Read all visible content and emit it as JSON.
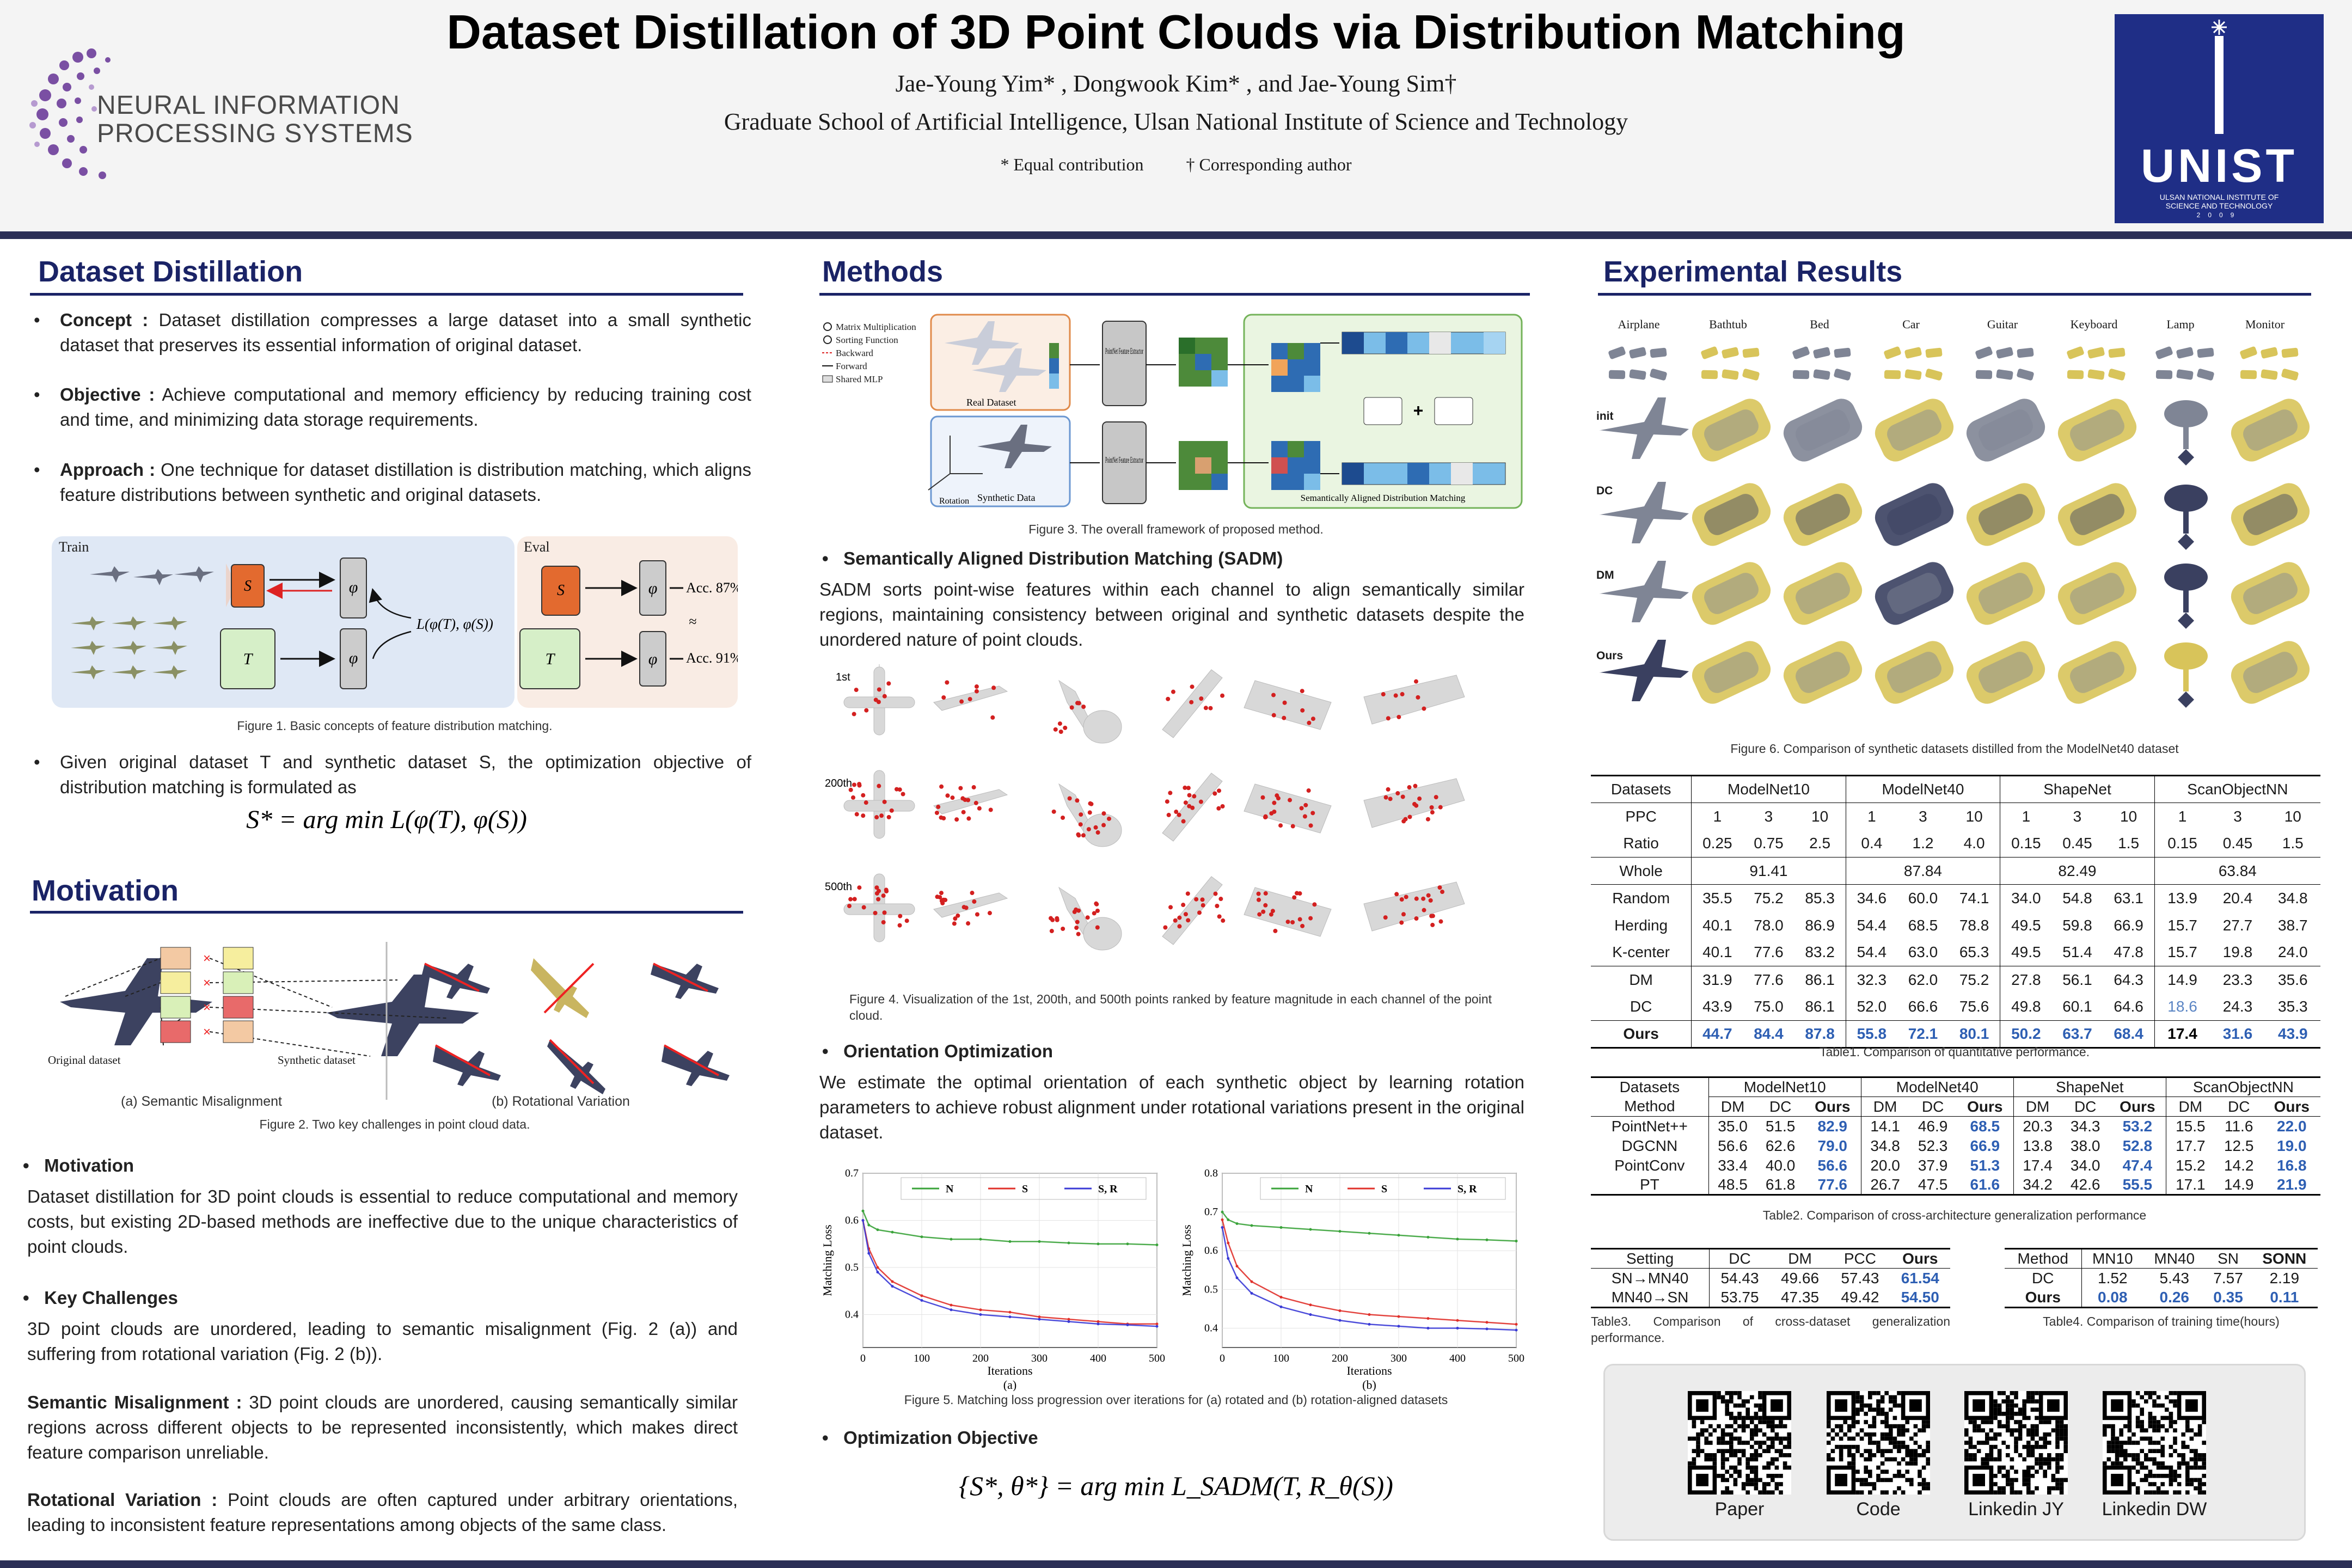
{
  "header": {
    "title": "Dataset Distillation of 3D Point Clouds via Distribution Matching",
    "authors": "Jae-Young Yim* , Dongwook Kim* , and Jae-Young Sim†",
    "affiliation": "Graduate School of Artificial Intelligence, Ulsan National Institute of Science and Technology",
    "note_equal": "* Equal contribution",
    "note_corr": "† Corresponding author",
    "neurips_line1": "NEURAL INFORMATION",
    "neurips_line2": "PROCESSING SYSTEMS",
    "unist_logo": "UNIST",
    "unist_sub1": "ULSAN NATIONAL INSTITUTE OF",
    "unist_sub2": "SCIENCE AND TECHNOLOGY",
    "unist_year": "2009"
  },
  "left": {
    "dd_title": "Dataset Distillation",
    "concept_label": "Concept :",
    "concept_text": "Dataset distillation compresses a large dataset into a small synthetic dataset that preserves its essential information of original dataset.",
    "objective_label": "Objective :",
    "objective_text": "Achieve computational and memory efficiency by reducing training cost and time, and minimizing data storage requirements.",
    "approach_label": "Approach :",
    "approach_text": "One technique for dataset distillation is distribution matching, which aligns feature distributions between synthetic and original datasets.",
    "fig1_train": "Train",
    "fig1_eval": "Eval",
    "fig1_loss": "L(φ(T), φ(S))",
    "fig1_acc1": "Acc. 87%",
    "fig1_acc2": "Acc. 91%",
    "fig1_caption": "Figure 1. Basic concepts of feature distribution matching.",
    "given_text": "Given original dataset T and synthetic dataset S, the optimization objective of distribution matching is formulated as",
    "eq1": "S* = arg min L(φ(T), φ(S))",
    "motivation_title": "Motivation",
    "fig2_orig": "Original dataset",
    "fig2_syn": "Synthetic dataset",
    "fig2_a": "(a) Semantic Misalignment",
    "fig2_b": "(b) Rotational Variation",
    "fig2_caption": "Figure 2. Two key challenges in point cloud data.",
    "mot_head": "Motivation",
    "mot_text": "Dataset distillation for 3D point clouds is essential to reduce computational and memory costs, but existing 2D-based methods are ineffective due to the unique characteristics of point clouds.",
    "kc_head": "Key Challenges",
    "kc_text": "3D point clouds are unordered, leading to semantic misalignment (Fig. 2 (a)) and suffering from rotational variation (Fig. 2 (b)).",
    "sm_label": "Semantic Misalignment :",
    "sm_text": "3D point clouds are unordered, causing semantically similar regions across different objects to be represented inconsistently, which makes direct feature comparison unreliable.",
    "rv_label": "Rotational Variation :",
    "rv_text": "Point clouds are often captured under arbitrary orientations, leading to inconsistent feature representations among objects of the same class."
  },
  "middle": {
    "methods_title": "Methods",
    "fig3_legend": [
      "Matrix Multiplication",
      "Sorting Function",
      "Backward",
      "Forward",
      "Shared MLP"
    ],
    "fig3_real": "Real Dataset",
    "fig3_syn": "Synthetic Data",
    "fig3_rot": "Rotation",
    "fig3_pn": "PointNet Feature Extractor",
    "fig3_sadm": "Semantically Aligned Distribution Matching",
    "fig3_caption": "Figure 3. The overall framework of proposed method.",
    "sadm_head": "Semantically Aligned Distribution Matching (SADM)",
    "sadm_text": "SADM sorts point-wise features within each channel to align semantically similar regions, maintaining consistency between original and synthetic datasets despite the unordered nature of point clouds.",
    "fig4_rows": [
      "1st",
      "200th",
      "500th"
    ],
    "fig4_caption": "Figure 4. Visualization of the 1st, 200th, and 500th points ranked by feature magnitude in each channel of the point cloud.",
    "oo_head": "Orientation Optimization",
    "oo_text": "We estimate the optimal orientation of each synthetic object by learning rotation parameters to achieve robust alignment under rotational variations present in the original dataset.",
    "fig5_caption": "Figure 5. Matching loss progression over iterations for (a) rotated and (b) rotation-aligned datasets",
    "obj_head": "Optimization Objective",
    "eq2": "{S*, θ*} = arg min L_SADM(T, R_θ(S))"
  },
  "chart_data": [
    {
      "type": "line",
      "title": "",
      "xlabel": "Iterations",
      "ylabel": "Matching Loss",
      "panel": "(a)",
      "xlim": [
        0,
        500
      ],
      "ylim": [
        0.33,
        0.7
      ],
      "x": [
        0,
        10,
        25,
        50,
        100,
        150,
        200,
        250,
        300,
        350,
        400,
        450,
        500
      ],
      "series": [
        {
          "name": "N",
          "color": "#3aa33a",
          "values": [
            0.62,
            0.59,
            0.58,
            0.575,
            0.565,
            0.56,
            0.56,
            0.555,
            0.555,
            0.552,
            0.55,
            0.55,
            0.548
          ]
        },
        {
          "name": "S",
          "color": "#e0302a",
          "values": [
            0.6,
            0.54,
            0.5,
            0.47,
            0.44,
            0.42,
            0.41,
            0.405,
            0.395,
            0.39,
            0.385,
            0.38,
            0.38
          ]
        },
        {
          "name": "S, R",
          "color": "#3a3ad6",
          "values": [
            0.6,
            0.53,
            0.49,
            0.46,
            0.43,
            0.41,
            0.4,
            0.395,
            0.39,
            0.385,
            0.38,
            0.378,
            0.375
          ]
        }
      ]
    },
    {
      "type": "line",
      "title": "",
      "xlabel": "Iterations",
      "ylabel": "Matching Loss",
      "panel": "(b)",
      "xlim": [
        0,
        500
      ],
      "ylim": [
        0.35,
        0.8
      ],
      "x": [
        0,
        10,
        25,
        50,
        100,
        150,
        200,
        250,
        300,
        350,
        400,
        450,
        500
      ],
      "series": [
        {
          "name": "N",
          "color": "#3aa33a",
          "values": [
            0.7,
            0.68,
            0.67,
            0.665,
            0.66,
            0.655,
            0.65,
            0.645,
            0.64,
            0.635,
            0.63,
            0.628,
            0.625
          ]
        },
        {
          "name": "S",
          "color": "#e0302a",
          "values": [
            0.68,
            0.62,
            0.56,
            0.52,
            0.48,
            0.46,
            0.445,
            0.435,
            0.43,
            0.425,
            0.42,
            0.415,
            0.41
          ]
        },
        {
          "name": "S, R",
          "color": "#3a3ad6",
          "values": [
            0.66,
            0.58,
            0.53,
            0.49,
            0.455,
            0.435,
            0.42,
            0.41,
            0.405,
            0.4,
            0.4,
            0.398,
            0.395
          ]
        }
      ]
    }
  ],
  "right": {
    "exp_title": "Experimental Results",
    "fig6_classes": [
      "Airplane",
      "Bathtub",
      "Bed",
      "Car",
      "Guitar",
      "Keyboard",
      "Lamp",
      "Monitor"
    ],
    "fig6_rows": [
      "init",
      "DC",
      "DM",
      "Ours"
    ],
    "fig6_caption": "Figure 6. Comparison of synthetic datasets distilled from the ModelNet40 dataset",
    "table1": {
      "head": [
        "Datasets",
        "ModelNet10",
        "ModelNet40",
        "ShapeNet",
        "ScanObjectNN"
      ],
      "ppc_label": "PPC",
      "ppc": [
        "1",
        "3",
        "10",
        "1",
        "3",
        "10",
        "1",
        "3",
        "10",
        "1",
        "3",
        "10"
      ],
      "ratio_label": "Ratio",
      "ratio": [
        "0.25",
        "0.75",
        "2.5",
        "0.4",
        "1.2",
        "4.0",
        "0.15",
        "0.45",
        "1.5",
        "0.15",
        "0.45",
        "1.5"
      ],
      "whole_label": "Whole",
      "whole": [
        "91.41",
        "87.84",
        "82.49",
        "63.84"
      ],
      "rows": [
        {
          "name": "Random",
          "vals": [
            "35.5",
            "75.2",
            "85.3",
            "34.6",
            "60.0",
            "74.1",
            "34.0",
            "54.8",
            "63.1",
            "13.9",
            "20.4",
            "34.8"
          ]
        },
        {
          "name": "Herding",
          "vals": [
            "40.1",
            "78.0",
            "86.9",
            "54.4",
            "68.5",
            "78.8",
            "49.5",
            "59.8",
            "66.9",
            "15.7",
            "27.7",
            "38.7"
          ]
        },
        {
          "name": "K-center",
          "vals": [
            "40.1",
            "77.6",
            "83.2",
            "54.4",
            "63.0",
            "65.3",
            "49.5",
            "51.4",
            "47.8",
            "15.7",
            "19.8",
            "24.0"
          ]
        },
        {
          "name": "DM",
          "vals": [
            "31.9",
            "77.6",
            "86.1",
            "32.3",
            "62.0",
            "75.2",
            "27.8",
            "56.1",
            "64.3",
            "14.9",
            "23.3",
            "35.6"
          ]
        },
        {
          "name": "DC",
          "vals": [
            "43.9",
            "75.0",
            "86.1",
            "52.0",
            "66.6",
            "75.6",
            "49.8",
            "60.1",
            "64.6",
            "18.6",
            "24.3",
            "35.3"
          ]
        },
        {
          "name": "Ours",
          "vals": [
            "44.7",
            "84.4",
            "87.8",
            "55.8",
            "72.1",
            "80.1",
            "50.2",
            "63.7",
            "68.4",
            "17.4",
            "31.6",
            "43.9"
          ]
        }
      ],
      "caption": "Table1. Comparison of quantitative performance."
    },
    "table2": {
      "head": [
        "Datasets",
        "ModelNet10",
        "ModelNet40",
        "ShapeNet",
        "ScanObjectNN"
      ],
      "sub_label": "Method",
      "sub": [
        "DM",
        "DC",
        "Ours",
        "DM",
        "DC",
        "Ours",
        "DM",
        "DC",
        "Ours",
        "DM",
        "DC",
        "Ours"
      ],
      "rows": [
        {
          "name": "PointNet++",
          "vals": [
            "35.0",
            "51.5",
            "82.9",
            "14.1",
            "46.9",
            "68.5",
            "20.3",
            "34.3",
            "53.2",
            "15.5",
            "11.6",
            "22.0"
          ]
        },
        {
          "name": "DGCNN",
          "vals": [
            "56.6",
            "62.6",
            "79.0",
            "34.8",
            "52.3",
            "66.9",
            "13.8",
            "38.0",
            "52.8",
            "17.7",
            "12.5",
            "19.0"
          ]
        },
        {
          "name": "PointConv",
          "vals": [
            "33.4",
            "40.0",
            "56.6",
            "20.0",
            "37.9",
            "51.3",
            "17.4",
            "34.0",
            "47.4",
            "15.2",
            "14.2",
            "16.8"
          ]
        },
        {
          "name": "PT",
          "vals": [
            "48.5",
            "61.8",
            "77.6",
            "26.7",
            "47.5",
            "61.6",
            "34.2",
            "42.6",
            "55.5",
            "17.1",
            "14.9",
            "21.9"
          ]
        }
      ],
      "caption": "Table2. Comparison of cross-architecture generalization performance"
    },
    "table3": {
      "head": [
        "Setting",
        "DC",
        "DM",
        "PCC",
        "Ours"
      ],
      "rows": [
        {
          "name": "SN→MN40",
          "vals": [
            "54.43",
            "49.66",
            "57.43",
            "61.54"
          ]
        },
        {
          "name": "MN40→SN",
          "vals": [
            "53.75",
            "47.35",
            "49.42",
            "54.50"
          ]
        }
      ],
      "caption": "Table3. Comparison of cross-dataset generalization performance."
    },
    "table4": {
      "head": [
        "Method",
        "MN10",
        "MN40",
        "SN",
        "SONN"
      ],
      "rows": [
        {
          "name": "DC",
          "vals": [
            "1.52",
            "5.43",
            "7.57",
            "2.19"
          ]
        },
        {
          "name": "Ours",
          "vals": [
            "0.08",
            "0.26",
            "0.35",
            "0.11"
          ]
        }
      ],
      "caption": "Table4. Comparison of training time(hours)"
    },
    "qr_labels": [
      "Paper",
      "Code",
      "Linkedin JY",
      "Linkedin DW"
    ]
  }
}
